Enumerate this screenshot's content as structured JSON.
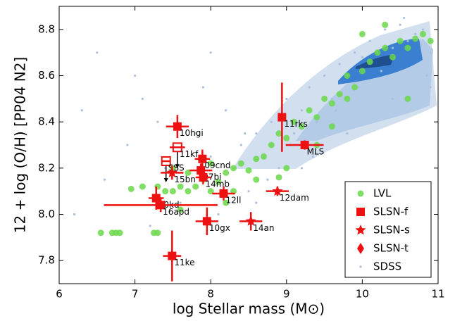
{
  "chart_data": {
    "type": "scatter",
    "xlabel": "log Stellar mass (M⊙)",
    "ylabel": "12 + log (O/H) [PP04 N2]",
    "xlim": [
      6,
      11
    ],
    "ylim": [
      7.7,
      8.9
    ],
    "xticks": [
      6,
      7,
      8,
      9,
      10,
      11
    ],
    "yticks": [
      7.8,
      {
        "value": 8,
        "label": "8.0"
      },
      8.2,
      8.4,
      8.6,
      8.8
    ],
    "legend": "lower right",
    "series": [
      {
        "name": "LVL",
        "marker": "circle",
        "color": "#6ad84a",
        "x": [
          6.55,
          6.7,
          6.75,
          6.8,
          7.25,
          7.3,
          6.95,
          7.3,
          7.4,
          7.5,
          7.6,
          7.7,
          7.8,
          7.9,
          8.0,
          8.1,
          8.2,
          8.3,
          8.4,
          8.5,
          8.6,
          8.7,
          8.8,
          8.9,
          9.0,
          9.1,
          9.2,
          9.3,
          9.4,
          9.5,
          9.6,
          9.7,
          9.8,
          9.9,
          10.0,
          10.1,
          10.2,
          10.3,
          10.4,
          10.5,
          10.6,
          10.7,
          10.8,
          10.9,
          7.5,
          7.7,
          8.0,
          8.3,
          8.6,
          9.0,
          9.4,
          9.8,
          10.0,
          10.3,
          8.9,
          7.1,
          7.6,
          8.2,
          9.6,
          10.6
        ],
        "values": [
          7.92,
          7.92,
          7.92,
          7.92,
          7.92,
          7.92,
          8.11,
          8.12,
          8.1,
          8.1,
          8.12,
          8.1,
          8.12,
          8.15,
          8.1,
          8.14,
          8.18,
          8.2,
          8.22,
          8.19,
          8.24,
          8.25,
          8.3,
          8.35,
          8.33,
          8.4,
          8.38,
          8.45,
          8.42,
          8.5,
          8.48,
          8.52,
          8.6,
          8.55,
          8.62,
          8.66,
          8.7,
          8.72,
          8.68,
          8.75,
          8.72,
          8.76,
          8.78,
          8.75,
          8.2,
          8.18,
          8.22,
          8.1,
          8.15,
          8.2,
          8.3,
          8.5,
          8.78,
          8.82,
          8.16,
          8.12,
          8.02,
          8.05,
          8.38,
          8.5
        ]
      },
      {
        "name": "SLSN-f",
        "marker": "square",
        "color": "#ee1111",
        "labels": [
          "10hgi",
          "11rks",
          "MLS",
          "11kf",
          "09cnd",
          "SSS",
          "07bi",
          "14mb",
          "12ll",
          "10kd",
          "16apd",
          "10gx",
          "11ke"
        ],
        "x": [
          7.56,
          8.94,
          9.24,
          7.56,
          7.89,
          7.41,
          7.87,
          7.9,
          8.17,
          7.28,
          7.34,
          7.95,
          7.49
        ],
        "values": [
          8.38,
          8.42,
          8.3,
          8.29,
          8.24,
          8.23,
          8.19,
          8.16,
          8.09,
          8.07,
          8.04,
          7.97,
          7.82
        ],
        "xerr": [
          0.15,
          0.05,
          0.25,
          0.1,
          0.1,
          0.05,
          0.15,
          0.1,
          0.15,
          0.1,
          0.75,
          0.15,
          0.12
        ],
        "yerr": [
          0.05,
          0.15,
          0.02,
          0,
          0.04,
          0,
          0.03,
          0.03,
          0.03,
          0.05,
          0.03,
          0.06,
          0.11
        ],
        "upper_limit": [
          false,
          false,
          false,
          true,
          false,
          true,
          false,
          false,
          false,
          false,
          false,
          false,
          false
        ]
      },
      {
        "name": "SLSN-s",
        "marker": "star",
        "color": "#ee1111",
        "labels": [
          "15bn",
          "12dam",
          "14an"
        ],
        "x": [
          7.49,
          8.88,
          8.53
        ],
        "values": [
          8.18,
          8.1,
          7.97
        ],
        "xerr": [
          0.15,
          0.15,
          0.15
        ],
        "yerr": [
          0.03,
          0.02,
          0.04
        ]
      },
      {
        "name": "SLSN-t",
        "marker": "diamond",
        "color": "#ee1111",
        "x": [],
        "values": []
      },
      {
        "name": "SDSS",
        "marker": "dot",
        "color": "#a9bfdd",
        "x": [
          6.3,
          6.6,
          6.9,
          7.1,
          7.4,
          7.6,
          7.8,
          8.0,
          8.1,
          8.3,
          8.4,
          8.5,
          8.6,
          8.7,
          8.8,
          8.9,
          9.0,
          9.1,
          9.2,
          9.3,
          9.4,
          9.5,
          9.6,
          9.7,
          9.8,
          9.9,
          10.0,
          10.1,
          10.2,
          10.3,
          10.4,
          10.5,
          10.6,
          10.7,
          10.8,
          10.9,
          6.2,
          7.0,
          7.3,
          7.9,
          8.2,
          8.45,
          8.75,
          9.05,
          9.35,
          9.65,
          9.95,
          10.25,
          10.55,
          10.85,
          6.5,
          7.2,
          8.0,
          8.6,
          9.2,
          9.8,
          10.4,
          10.9
        ],
        "values": [
          8.45,
          8.15,
          8.3,
          8.5,
          8.2,
          8.05,
          8.35,
          8.25,
          8.0,
          8.2,
          8.3,
          8.1,
          8.35,
          8.25,
          8.4,
          8.2,
          8.5,
          8.35,
          8.45,
          8.55,
          8.4,
          8.6,
          8.5,
          8.65,
          8.6,
          8.7,
          8.68,
          8.75,
          8.7,
          8.8,
          8.72,
          8.82,
          8.75,
          8.78,
          8.8,
          8.7,
          8.0,
          8.6,
          8.4,
          8.55,
          8.45,
          8.35,
          8.15,
          8.3,
          8.25,
          8.45,
          8.55,
          8.62,
          8.85,
          8.6,
          8.7,
          7.95,
          8.7,
          8.05,
          8.2,
          8.35,
          8.5,
          8.55
        ]
      }
    ]
  }
}
